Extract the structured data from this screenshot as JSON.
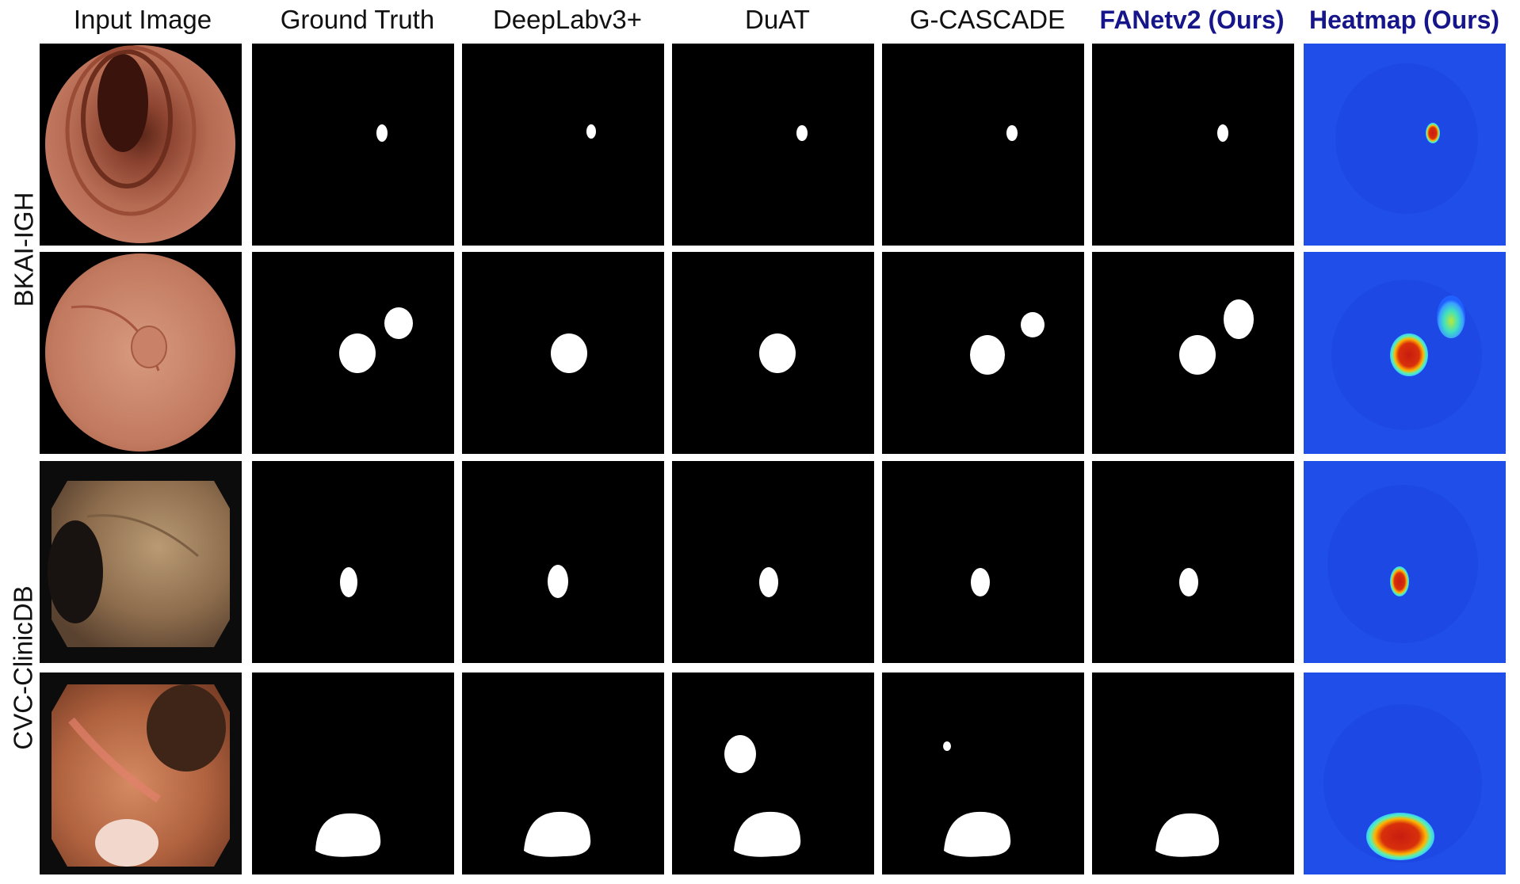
{
  "columns": [
    {
      "label": "Input Image",
      "ours": false
    },
    {
      "label": "Ground Truth",
      "ours": false
    },
    {
      "label": "DeepLabv3+",
      "ours": false
    },
    {
      "label": "DuAT",
      "ours": false
    },
    {
      "label": "G-CASCADE",
      "ours": false
    },
    {
      "label": "FANetv2 (Ours)",
      "ours": true
    },
    {
      "label": "Heatmap (Ours)",
      "ours": true
    }
  ],
  "datasets": [
    {
      "label": "BKAI-IGH",
      "rows": 2
    },
    {
      "label": "CVC-ClinicDB",
      "rows": 2
    }
  ],
  "colors": {
    "mask_background": "#000000",
    "mask_foreground": "#ffffff",
    "heatmap_background": "#1f4fe8",
    "ours_header": "#16168a"
  }
}
